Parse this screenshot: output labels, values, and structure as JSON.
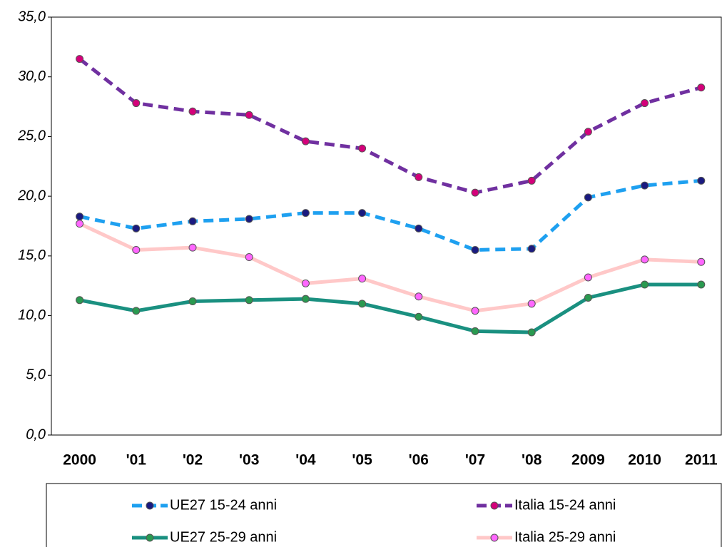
{
  "chart_data": {
    "type": "line",
    "categories": [
      "2000",
      "'01",
      "'02",
      "'03",
      "'04",
      "'05",
      "'06",
      "'07",
      "'08",
      "2009",
      "2010",
      "2011"
    ],
    "series": [
      {
        "name": "UE27 15-24 anni",
        "color": "#1ea0f0",
        "marker_color": "#1a1a80",
        "dashed": true,
        "values": [
          18.3,
          17.3,
          17.9,
          18.1,
          18.6,
          18.6,
          17.3,
          15.5,
          15.6,
          19.9,
          20.9,
          21.3
        ]
      },
      {
        "name": "Italia 15-24 anni",
        "color": "#7030a0",
        "marker_color": "#d4007a",
        "dashed": true,
        "values": [
          31.5,
          27.8,
          27.1,
          26.8,
          24.6,
          24.0,
          21.6,
          20.3,
          21.3,
          25.4,
          27.8,
          29.1
        ]
      },
      {
        "name": "UE27 25-29 anni",
        "color": "#1a9080",
        "marker_color": "#2a9a50",
        "dashed": false,
        "values": [
          11.3,
          10.4,
          11.2,
          11.3,
          11.4,
          11.0,
          9.9,
          8.7,
          8.6,
          11.5,
          12.6,
          12.6
        ]
      },
      {
        "name": "Italia 25-29 anni",
        "color": "#ffc8c8",
        "marker_color": "#ff66ff",
        "dashed": false,
        "values": [
          17.7,
          15.5,
          15.7,
          14.9,
          12.7,
          13.1,
          11.6,
          10.4,
          11.0,
          13.2,
          14.7,
          14.5
        ]
      }
    ],
    "ylim": [
      0,
      35
    ],
    "yticks": [
      {
        "value": 0,
        "label": "0,0"
      },
      {
        "value": 5,
        "label": "5,0"
      },
      {
        "value": 10,
        "label": "10,0"
      },
      {
        "value": 15,
        "label": "15,0"
      },
      {
        "value": 20,
        "label": "20,0"
      },
      {
        "value": 25,
        "label": "25,0"
      },
      {
        "value": 30,
        "label": "30,0"
      },
      {
        "value": 35,
        "label": "35,0"
      }
    ],
    "grid": false,
    "legend": "bottom"
  }
}
